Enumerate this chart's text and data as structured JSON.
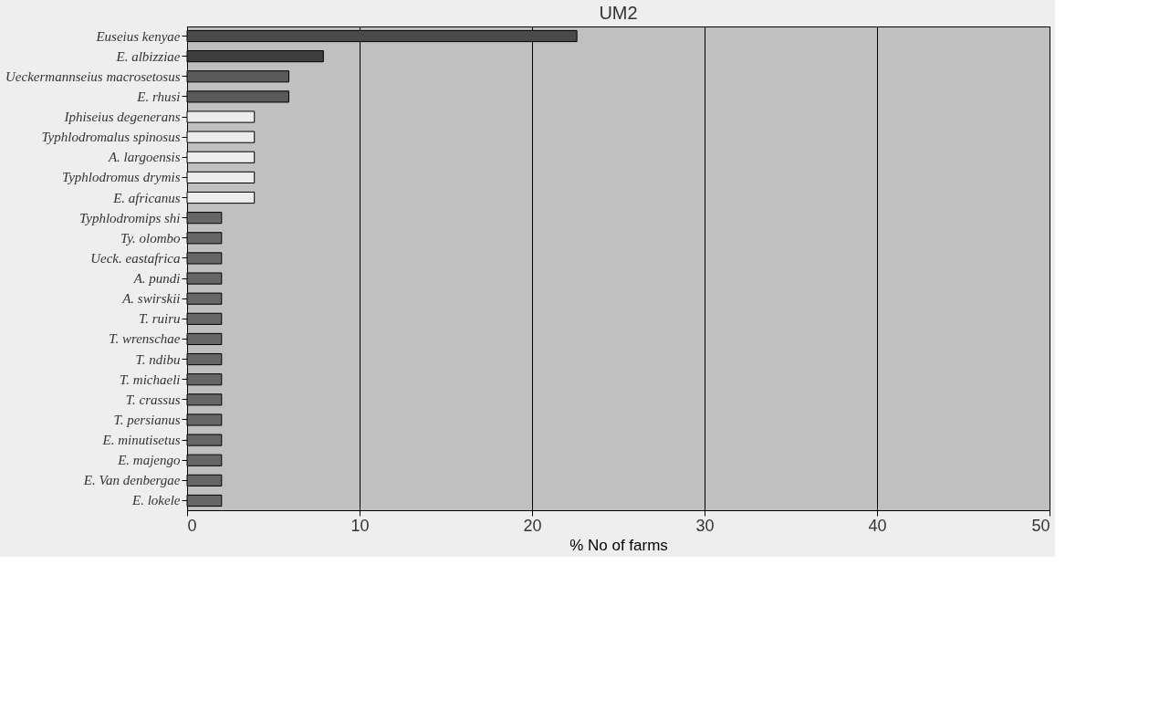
{
  "chart_data": {
    "type": "bar",
    "orientation": "horizontal",
    "title": "UM2",
    "xlabel": "% No  of farms",
    "categories": [
      "Euseius kenyae",
      "E. albizziae",
      "Ueckermannseius macrosetosus",
      "E. rhusi",
      "Iphiseius degenerans",
      "Typhlodromalus spinosus",
      "A. largoensis",
      "Typhlodromus drymis",
      "E. africanus",
      "Typhlodromips shi",
      "Ty. olombo",
      "Ueck. eastafrica",
      "A. pundi",
      "A. swirskii",
      "T. ruiru",
      "T. wrenschae",
      "T. ndibu",
      "T. michaeli",
      "T. crassus",
      "T. persianus",
      "E. minutisetus",
      "E. majengo",
      "E. Van denbergae",
      "E. lokele"
    ],
    "values": [
      22.6,
      7.9,
      5.9,
      5.9,
      3.9,
      3.9,
      3.9,
      3.9,
      3.9,
      2.0,
      2.0,
      2.0,
      2.0,
      2.0,
      2.0,
      2.0,
      2.0,
      2.0,
      2.0,
      2.0,
      2.0,
      2.0,
      2.0,
      2.0
    ],
    "colors": [
      "#4a4a4a",
      "#3e3e3e",
      "#5a5a5a",
      "#5a5a5a",
      "#ececec",
      "#ececec",
      "#ececec",
      "#ececec",
      "#ececec",
      "#666666",
      "#666666",
      "#666666",
      "#666666",
      "#666666",
      "#666666",
      "#666666",
      "#666666",
      "#666666",
      "#666666",
      "#666666",
      "#666666",
      "#666666",
      "#666666",
      "#666666"
    ],
    "xlim": [
      0,
      50
    ],
    "xticks": [
      0,
      10,
      20,
      30,
      40,
      50
    ],
    "grid": "x"
  }
}
